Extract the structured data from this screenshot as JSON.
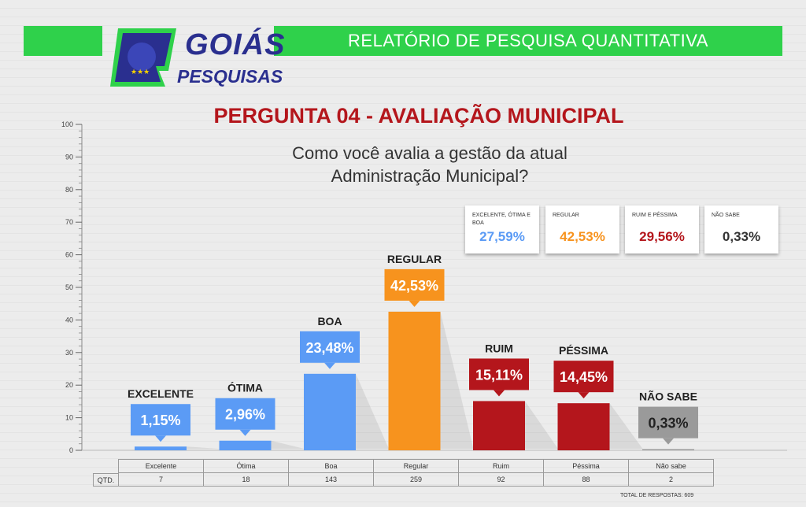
{
  "header": {
    "brand_line1": "GOIÁS",
    "brand_line2": "PESQUISAS",
    "report_title": "RELATÓRIO DE PESQUISA QUANTITATIVA",
    "accent_color": "#2fd14b",
    "brand_color": "#2a2f8f"
  },
  "question": {
    "title": "PERGUNTA 04 - AVALIAÇÃO MUNICIPAL",
    "text_line1": "Como você avalia a gestão da atual",
    "text_line2": "Administração Municipal?"
  },
  "summary": [
    {
      "label": "EXCELENTE, ÓTIMA E BOA",
      "value": "27,59%",
      "color": "#5b9bf5"
    },
    {
      "label": "REGULAR",
      "value": "42,53%",
      "color": "#f7931e"
    },
    {
      "label": "RUIM E PÉSSIMA",
      "value": "29,56%",
      "color": "#b4161c"
    },
    {
      "label": "NÃO SABE",
      "value": "0,33%",
      "color": "#333333"
    }
  ],
  "chart_data": {
    "type": "bar",
    "ylim": [
      0,
      100
    ],
    "yticks": [
      0,
      10,
      20,
      30,
      40,
      50,
      60,
      70,
      80,
      90,
      100
    ],
    "grid": true,
    "categories": [
      "Excelente",
      "Ótima",
      "Boa",
      "Regular",
      "Ruim",
      "Péssima",
      "Não sabe"
    ],
    "bar_labels": [
      "EXCELENTE",
      "ÓTIMA",
      "BOA",
      "REGULAR",
      "RUIM",
      "PÉSSIMA",
      "NÃO SABE"
    ],
    "values": [
      1.15,
      2.96,
      23.48,
      42.53,
      15.11,
      14.45,
      0.33
    ],
    "value_labels": [
      "1,15%",
      "2,96%",
      "23,48%",
      "42,53%",
      "15,11%",
      "14,45%",
      "0,33%"
    ],
    "colors": [
      "#5b9bf5",
      "#5b9bf5",
      "#5b9bf5",
      "#f7931e",
      "#b4161c",
      "#b4161c",
      "#9a9a9a"
    ],
    "label_colors": [
      "#5b9bf5",
      "#5b9bf5",
      "#5b9bf5",
      "#f7931e",
      "#b4161c",
      "#b4161c",
      "#8c8c8c"
    ]
  },
  "table": {
    "row_label": "QTD.",
    "categories": [
      "Excelente",
      "Ótima",
      "Boa",
      "Regular",
      "Ruim",
      "Péssima",
      "Não sabe"
    ],
    "counts": [
      "7",
      "18",
      "143",
      "259",
      "92",
      "88",
      "2"
    ],
    "total_text": "TOTAL DE RESPOSTAS: 609"
  }
}
